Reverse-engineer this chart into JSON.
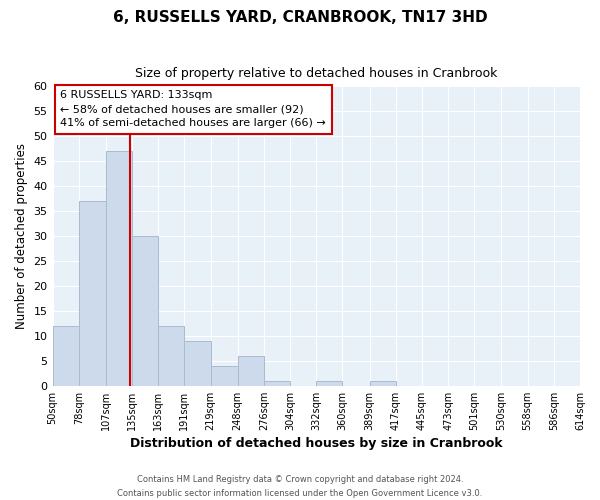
{
  "title": "6, RUSSELLS YARD, CRANBROOK, TN17 3HD",
  "subtitle": "Size of property relative to detached houses in Cranbrook",
  "xlabel": "Distribution of detached houses by size in Cranbrook",
  "ylabel": "Number of detached properties",
  "bar_color": "#ccdaeb",
  "bar_edge_color": "#aabbd0",
  "property_line_x": 133,
  "property_line_color": "#cc0000",
  "bin_edges": [
    50,
    78,
    107,
    135,
    163,
    191,
    219,
    248,
    276,
    304,
    332,
    360,
    389,
    417,
    445,
    473,
    501,
    530,
    558,
    586,
    614
  ],
  "bar_heights": [
    12,
    37,
    47,
    30,
    12,
    9,
    4,
    6,
    1,
    0,
    1,
    0,
    1,
    0,
    0,
    0,
    0,
    0,
    0,
    0
  ],
  "tick_labels": [
    "50sqm",
    "78sqm",
    "107sqm",
    "135sqm",
    "163sqm",
    "191sqm",
    "219sqm",
    "248sqm",
    "276sqm",
    "304sqm",
    "332sqm",
    "360sqm",
    "389sqm",
    "417sqm",
    "445sqm",
    "473sqm",
    "501sqm",
    "530sqm",
    "558sqm",
    "586sqm",
    "614sqm"
  ],
  "ylim": [
    0,
    60
  ],
  "yticks": [
    0,
    5,
    10,
    15,
    20,
    25,
    30,
    35,
    40,
    45,
    50,
    55,
    60
  ],
  "annotation_title": "6 RUSSELLS YARD: 133sqm",
  "annotation_line1": "← 58% of detached houses are smaller (92)",
  "annotation_line2": "41% of semi-detached houses are larger (66) →",
  "annotation_box_color": "#ffffff",
  "annotation_box_edge": "#cc0000",
  "footer_line1": "Contains HM Land Registry data © Crown copyright and database right 2024.",
  "footer_line2": "Contains public sector information licensed under the Open Government Licence v3.0.",
  "background_color": "#ffffff",
  "plot_bg_color": "#e8f0f8",
  "grid_color": "#ffffff"
}
